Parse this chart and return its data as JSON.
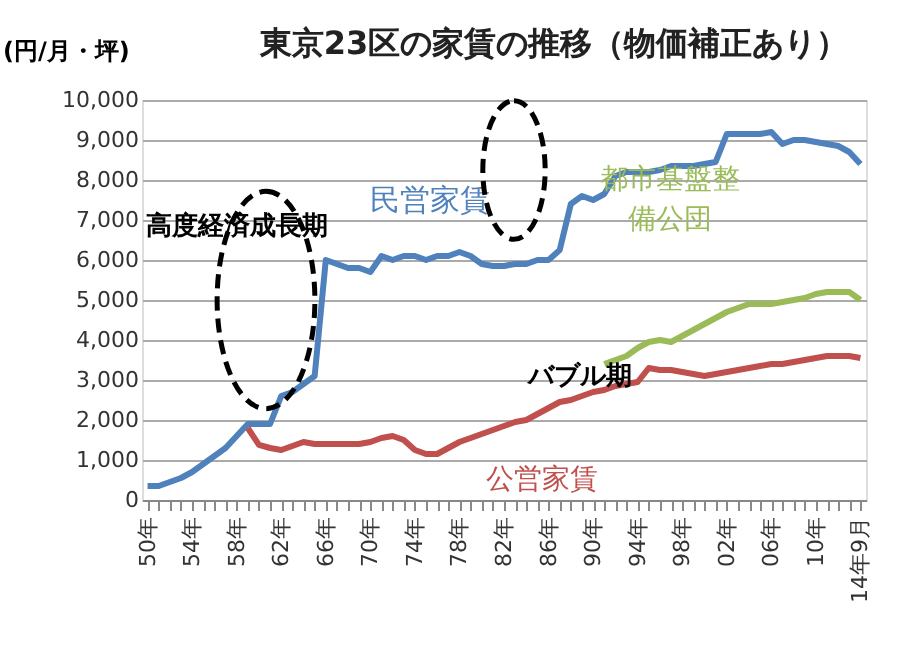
{
  "chart_data": {
    "type": "line",
    "title": "東京23区の家賃の推移（物価補正あり）",
    "ylabel": "(円/月・坪)",
    "categories": [
      "50年",
      null,
      null,
      null,
      "54年",
      null,
      null,
      null,
      "58年",
      null,
      null,
      null,
      "62年",
      null,
      null,
      null,
      "66年",
      null,
      null,
      null,
      "70年",
      null,
      null,
      null,
      "74年",
      null,
      null,
      null,
      "78年",
      null,
      null,
      null,
      "82年",
      null,
      null,
      null,
      "86年",
      null,
      null,
      null,
      "90年",
      null,
      null,
      null,
      "94年",
      null,
      null,
      null,
      "98年",
      null,
      null,
      null,
      "02年",
      null,
      null,
      null,
      "06年",
      null,
      null,
      null,
      "10年",
      null,
      null,
      null,
      "14年9月"
    ],
    "series": [
      {
        "name": "民営家賃",
        "color": "#4f81bd",
        "values": [
          350,
          350,
          450,
          550,
          700,
          900,
          1100,
          1300,
          1600,
          1900,
          1900,
          1900,
          2600,
          2700,
          2900,
          3100,
          6000,
          5900,
          5800,
          5800,
          5700,
          6100,
          6000,
          6100,
          6100,
          6000,
          6100,
          6100,
          6200,
          6100,
          5900,
          5850,
          5850,
          5900,
          5900,
          6000,
          6000,
          6250,
          7400,
          7600,
          7500,
          7650,
          8100,
          8200,
          8200,
          8200,
          8250,
          8350,
          8350,
          8350,
          8400,
          8450,
          9150,
          9150,
          9150,
          9150,
          9200,
          8900,
          9000,
          9000,
          8950,
          8900,
          8850,
          8700,
          8400
        ]
      },
      {
        "name": "公営家賃",
        "color": "#c0504d",
        "values": [
          null,
          null,
          null,
          null,
          null,
          null,
          null,
          null,
          null,
          1800,
          1380,
          1300,
          1250,
          1350,
          1450,
          1400,
          1400,
          1400,
          1400,
          1400,
          1450,
          1550,
          1600,
          1500,
          1250,
          1150,
          1150,
          1300,
          1450,
          1550,
          1650,
          1750,
          1850,
          1950,
          2000,
          2150,
          2300,
          2450,
          2500,
          2600,
          2700,
          2750,
          2850,
          2900,
          2950,
          3300,
          3250,
          3250,
          3200,
          3150,
          3100,
          3150,
          3200,
          3250,
          3300,
          3350,
          3400,
          3400,
          3450,
          3500,
          3550,
          3600,
          3600,
          3600,
          3550
        ]
      },
      {
        "name": "都市基盤整備公団",
        "color": "#9bbb59",
        "values": [
          null,
          null,
          null,
          null,
          null,
          null,
          null,
          null,
          null,
          null,
          null,
          null,
          null,
          null,
          null,
          null,
          null,
          null,
          null,
          null,
          null,
          null,
          null,
          null,
          null,
          null,
          null,
          null,
          null,
          null,
          null,
          null,
          null,
          null,
          null,
          null,
          null,
          null,
          null,
          null,
          null,
          3400,
          3500,
          3600,
          3800,
          3950,
          4000,
          3950,
          4100,
          4250,
          4400,
          4550,
          4700,
          4800,
          4900,
          4900,
          4900,
          4950,
          5000,
          5050,
          5150,
          5200,
          5200,
          5200,
          5000
        ]
      }
    ],
    "ylim": [
      0,
      10000
    ],
    "yticks": [
      {
        "value": 0,
        "label": "0"
      },
      {
        "value": 1000,
        "label": "1,000"
      },
      {
        "value": 2000,
        "label": "2,000"
      },
      {
        "value": 3000,
        "label": "3,000"
      },
      {
        "value": 4000,
        "label": "4,000"
      },
      {
        "value": 5000,
        "label": "5,000"
      },
      {
        "value": 6000,
        "label": "6,000"
      },
      {
        "value": 7000,
        "label": "7,000"
      },
      {
        "value": 8000,
        "label": "8,000"
      },
      {
        "value": 9000,
        "label": "9,000"
      },
      {
        "value": 10000,
        "label": "10,000"
      }
    ],
    "grid": "y",
    "legend": false,
    "marker": "none",
    "line_style": "solid",
    "annotations": [
      "高度経済成長期",
      "バブル期"
    ]
  }
}
